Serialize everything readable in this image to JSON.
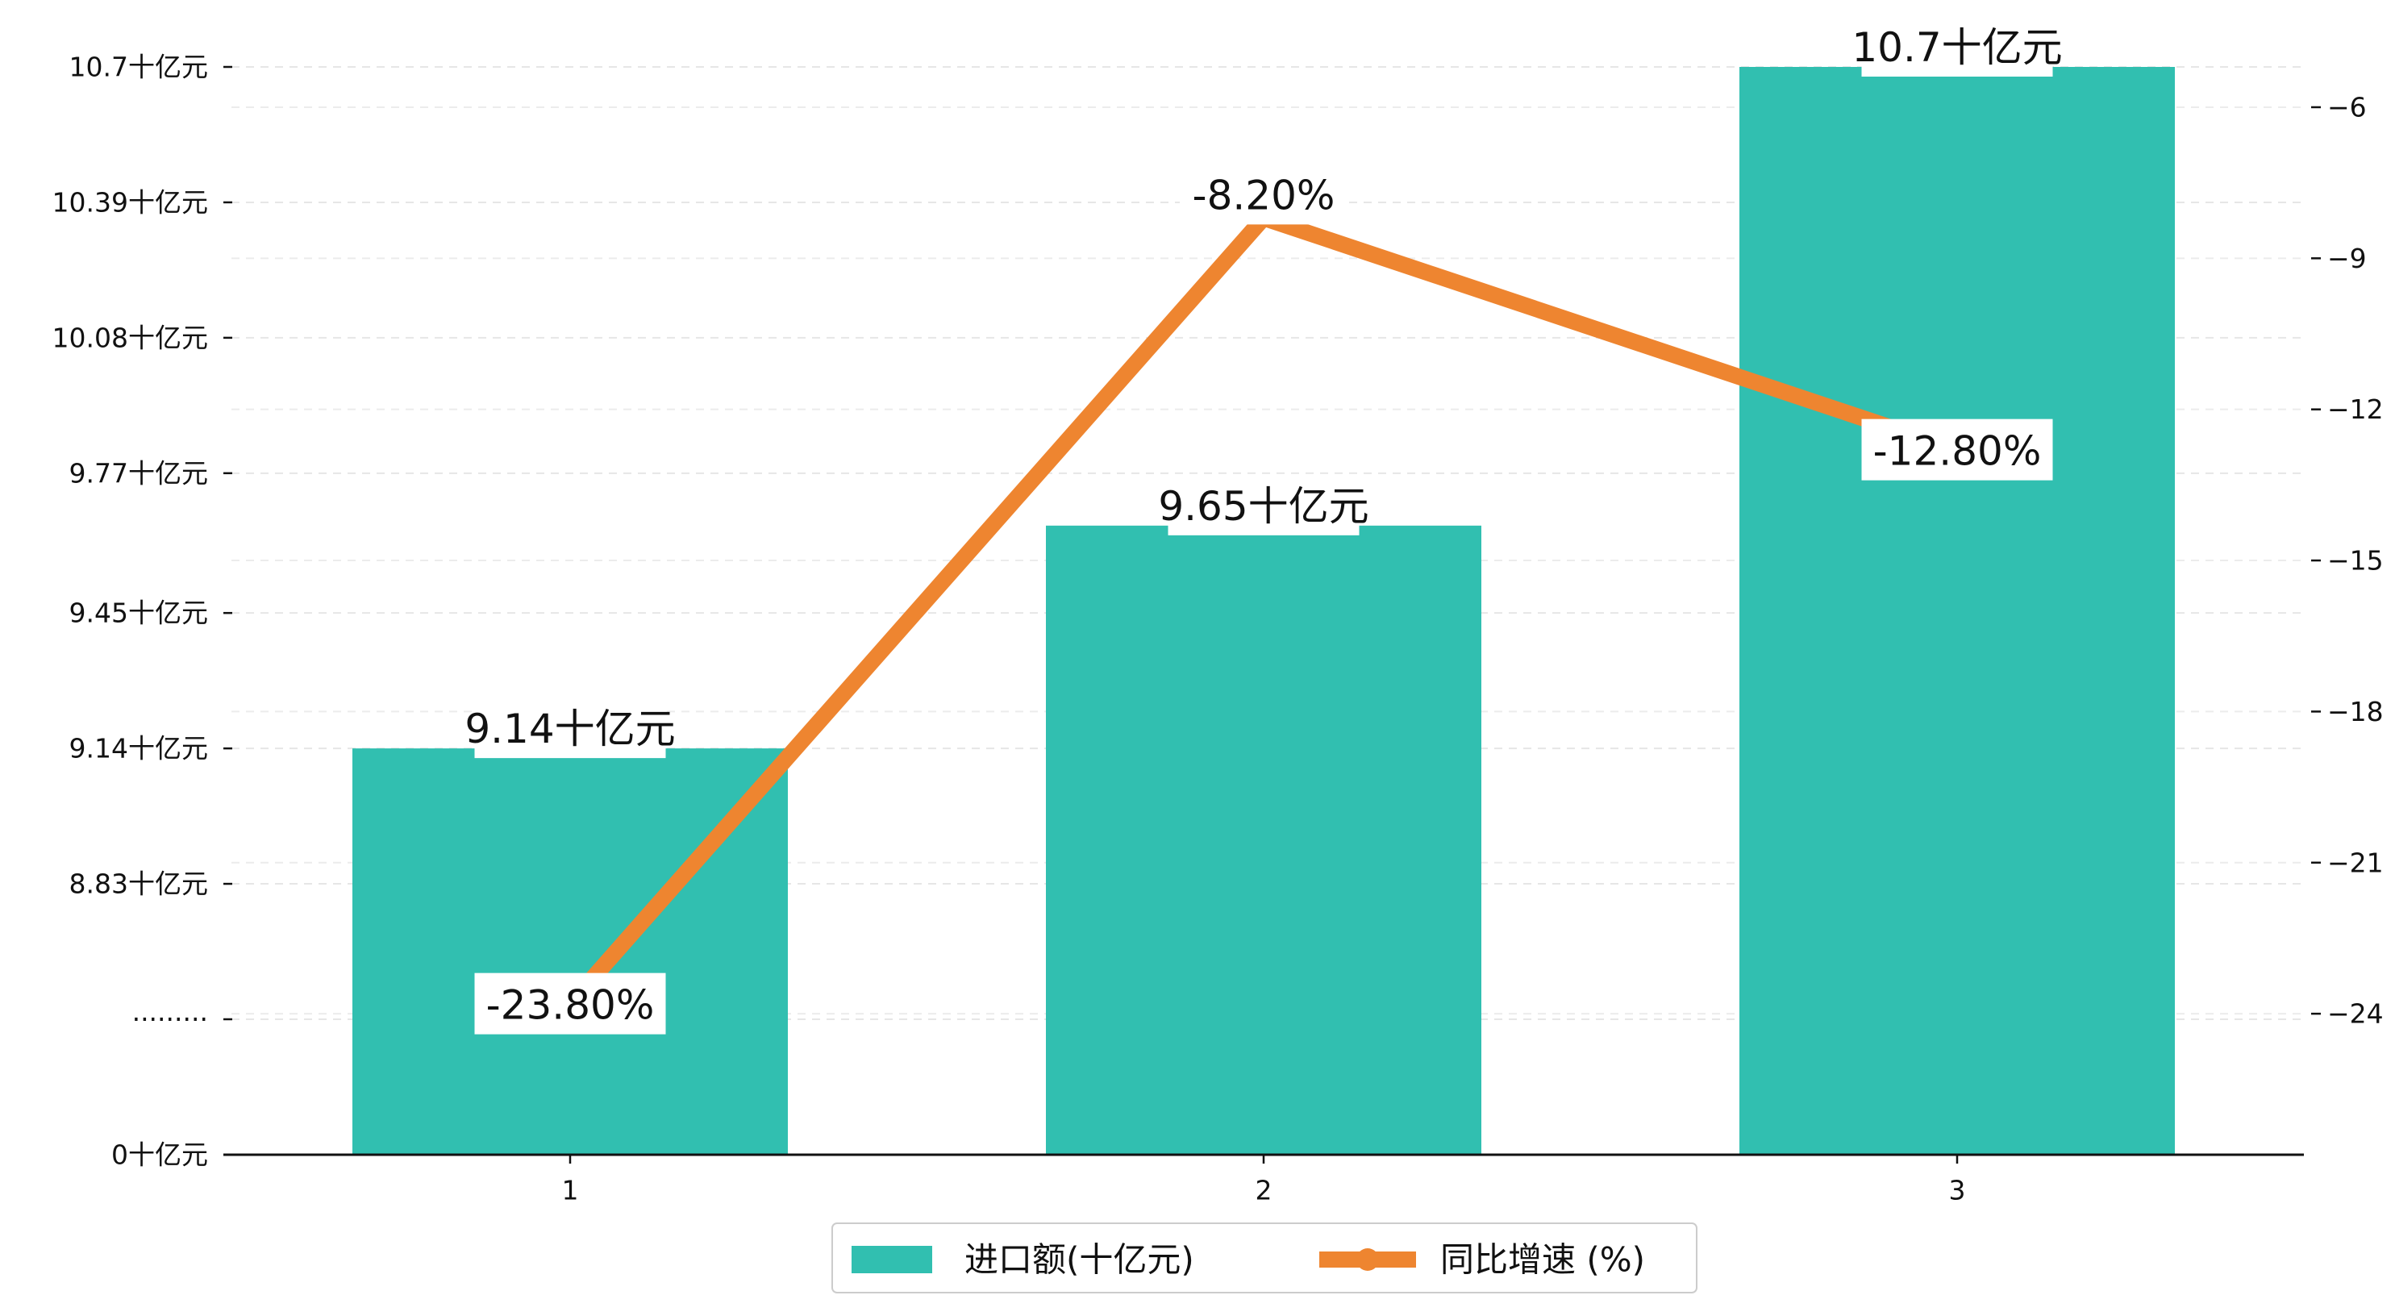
{
  "chart_data": {
    "type": "bar",
    "categories": [
      "1",
      "2",
      "3"
    ],
    "series": [
      {
        "name": "进口额(十亿元)",
        "type": "bar",
        "axis": "left",
        "values": [
          9.14,
          9.65,
          10.7
        ],
        "labels": [
          "9.14十亿元",
          "9.65十亿元",
          "10.7十亿元"
        ],
        "color": "#31bfb0"
      },
      {
        "name": "同比增速 (%)",
        "type": "line",
        "axis": "right",
        "values": [
          -23.8,
          -8.2,
          -12.8
        ],
        "labels": [
          "-23.80%",
          "-8.20%",
          "-12.80%"
        ],
        "color": "#ee8530"
      }
    ],
    "left_axis": {
      "ticks": [
        {
          "value": 0,
          "label": "0十亿元"
        },
        {
          "value": null,
          "label": "·········"
        },
        {
          "value": 8.83,
          "label": "8.83十亿元"
        },
        {
          "value": 9.14,
          "label": "9.14十亿元"
        },
        {
          "value": 9.45,
          "label": "9.45十亿元"
        },
        {
          "value": 9.77,
          "label": "9.77十亿元"
        },
        {
          "value": 10.08,
          "label": "10.08十亿元"
        },
        {
          "value": 10.39,
          "label": "10.39十亿元"
        },
        {
          "value": 10.7,
          "label": "10.7十亿元"
        }
      ],
      "break": "0 to 8.52 collapsed"
    },
    "right_axis": {
      "ticks": [
        -6,
        -9,
        -12,
        -15,
        -18,
        -21,
        -24
      ],
      "range": [
        -26.8,
        -5.2
      ]
    },
    "grid": "dashed horizontal",
    "legend_position": "bottom-center",
    "xlabel": "",
    "ylabel": "",
    "title": ""
  }
}
